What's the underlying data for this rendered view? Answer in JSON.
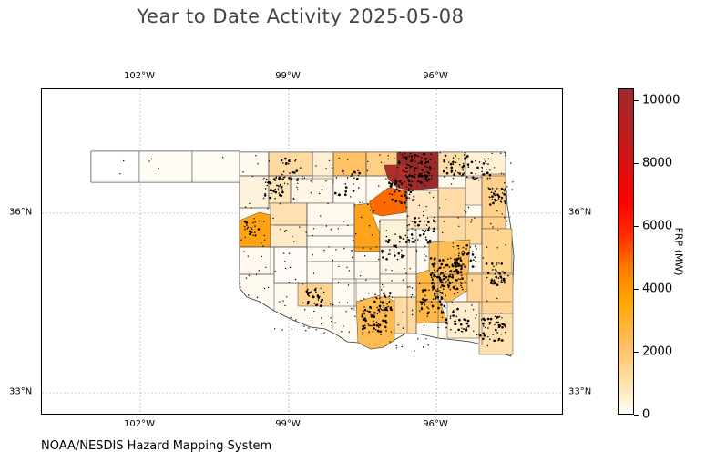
{
  "title": "Year to Date Activity 2025-05-08",
  "credit": "NOAA/NESDIS Hazard Mapping System",
  "map": {
    "region": "Oklahoma",
    "lon_ticks": [
      "102°W",
      "99°W",
      "96°W"
    ],
    "lat_ticks": [
      "36°N",
      "33°N"
    ],
    "gridlines": true
  },
  "colorbar": {
    "label": "FRP (MW)",
    "ticks": [
      "0",
      "2000",
      "4000",
      "6000",
      "8000",
      "10000"
    ],
    "range": [
      0,
      10400
    ],
    "colors": [
      "#fffef8",
      "#ffc26a",
      "#ffa500",
      "#ff7a00",
      "#ff0000",
      "#9b2a2a"
    ]
  }
}
